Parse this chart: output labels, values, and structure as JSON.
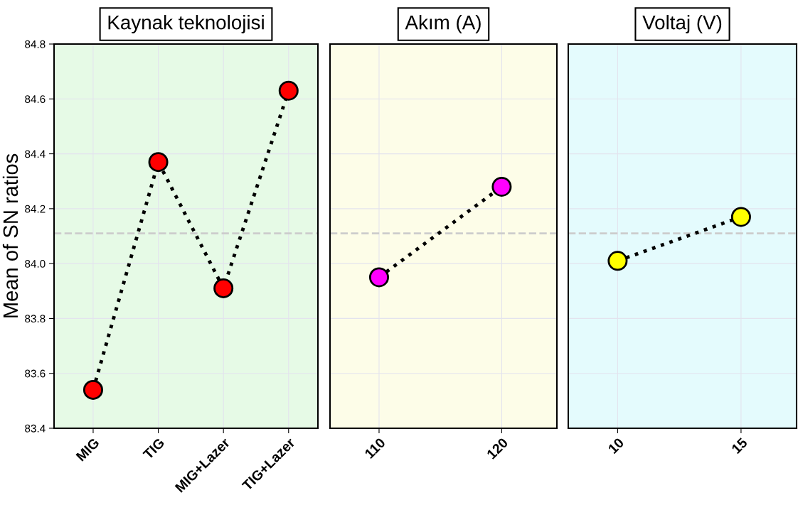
{
  "chart_data": [
    {
      "type": "line",
      "title": "Kaynak teknolojisi",
      "ylabel": "Mean of SN ratios",
      "categories": [
        "MIG",
        "TIG",
        "MIG+Lazer",
        "TIG+Lazer"
      ],
      "series": [
        {
          "color": "#ff0000",
          "values": [
            83.54,
            84.37,
            83.91,
            84.63
          ]
        }
      ],
      "ylim": [
        83.4,
        84.8
      ],
      "yticks": [
        {
          "value": 83.4,
          "label": "83.4"
        },
        {
          "value": 83.6,
          "label": "83.6"
        },
        {
          "value": 83.8,
          "label": "83.8"
        },
        {
          "value": 84.0,
          "label": "84.0"
        },
        {
          "value": 84.2,
          "label": "84.2"
        },
        {
          "value": 84.4,
          "label": "84.4"
        },
        {
          "value": 84.6,
          "label": "84.6"
        },
        {
          "value": 84.8,
          "label": "84.8"
        }
      ],
      "ref_lines": [
        {
          "axis": "y",
          "value": 84.11,
          "color": "#cccccc",
          "line_style": "dashed"
        }
      ],
      "grid": true,
      "marker": "circle",
      "line_style": "dotted"
    },
    {
      "type": "line",
      "title": "Akım (A)",
      "categories": [
        "110",
        "120"
      ],
      "series": [
        {
          "color": "#ff00ff",
          "values": [
            83.95,
            84.28
          ]
        }
      ],
      "ylim": [
        83.4,
        84.8
      ],
      "yticks": [
        83.4,
        83.6,
        83.8,
        84.0,
        84.2,
        84.4,
        84.6,
        84.8
      ],
      "tick_labels": "x",
      "ref_lines": [
        {
          "axis": "y",
          "value": 84.11,
          "color": "#cccccc",
          "line_style": "dashed"
        }
      ],
      "grid": true,
      "marker": "circle",
      "line_style": "dotted"
    },
    {
      "type": "line",
      "title": "Voltaj (V)",
      "categories": [
        "10",
        "15"
      ],
      "series": [
        {
          "color": "#ffff00",
          "values": [
            84.01,
            84.17
          ]
        }
      ],
      "ylim": [
        83.4,
        84.8
      ],
      "yticks": [
        83.4,
        83.6,
        83.8,
        84.0,
        84.2,
        84.4,
        84.6,
        84.8
      ],
      "tick_labels": "x",
      "ref_lines": [
        {
          "axis": "y",
          "value": 84.11,
          "color": "#cccccc",
          "line_style": "dashed"
        }
      ],
      "grid": true,
      "marker": "circle",
      "line_style": "dotted"
    }
  ]
}
